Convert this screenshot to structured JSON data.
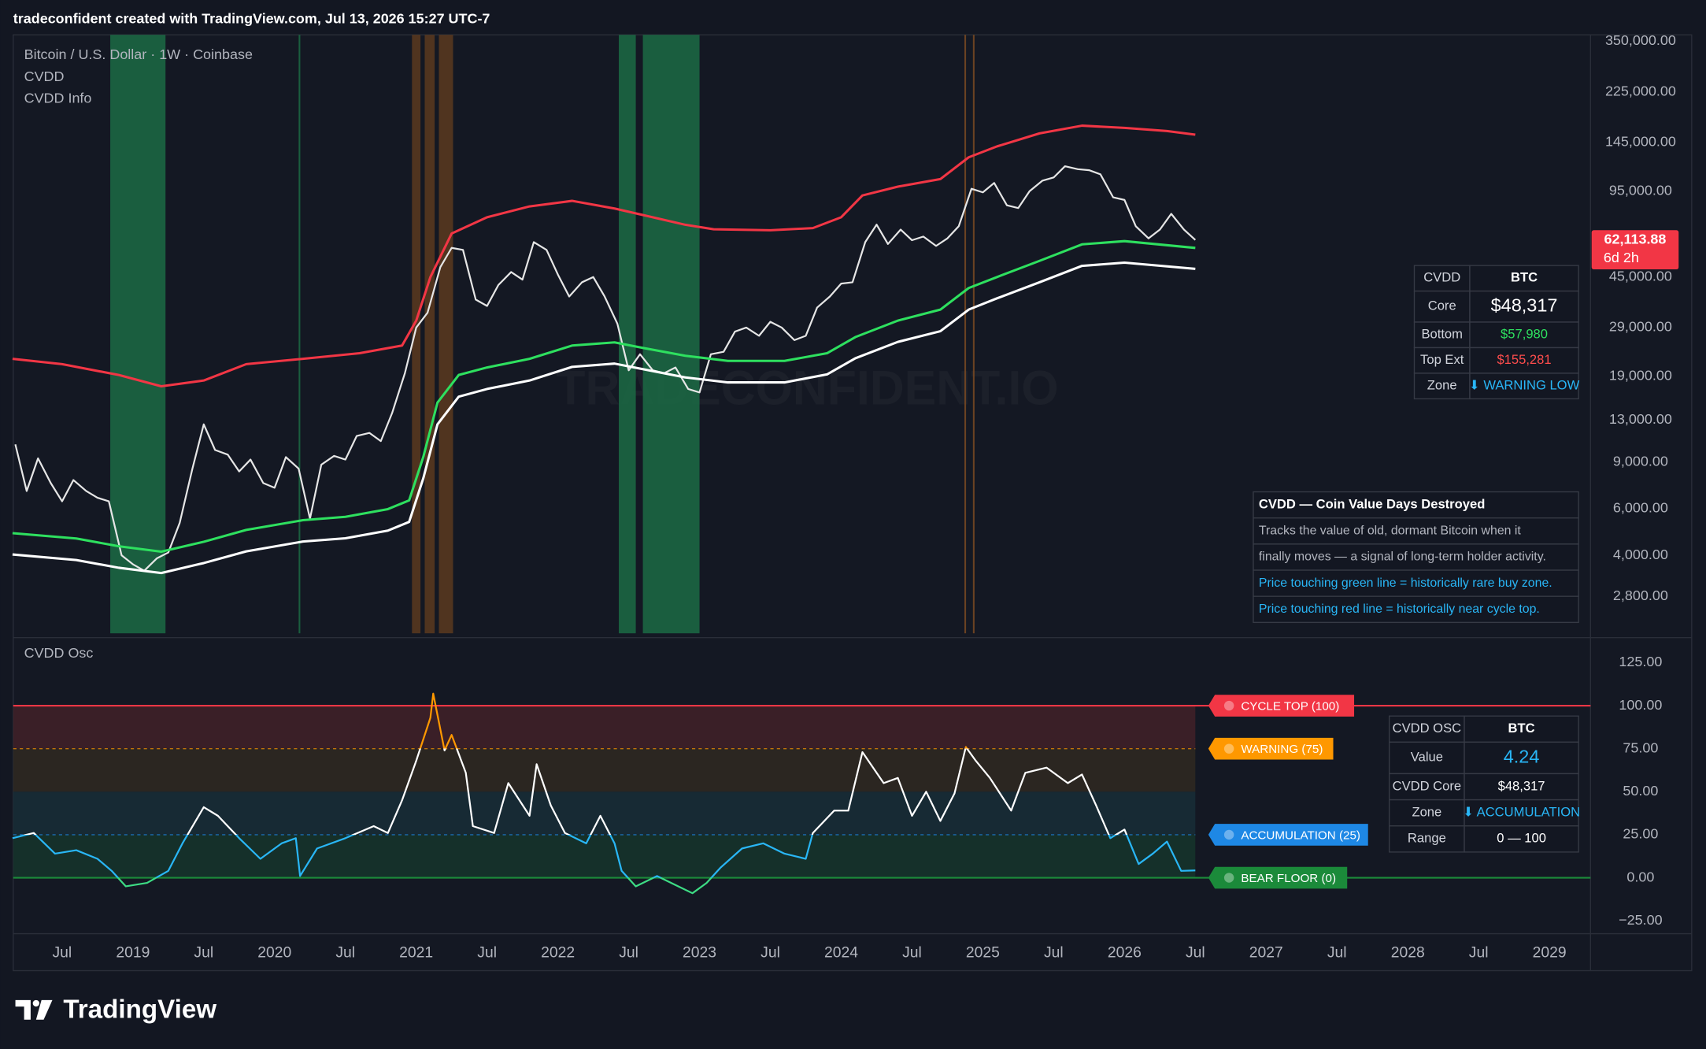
{
  "header": "tradeconfident created with TradingView.com, Jul 13, 2026 15:27 UTC-7",
  "watermark": "TRADECONFIDENT.IO",
  "footer": "TradingView",
  "chart_data": [
    {
      "type": "line",
      "log_scale": true,
      "legend": [
        "Bitcoin / U.S. Dollar · 1W · Coinbase",
        "CVDD",
        "CVDD Info"
      ],
      "xlim": [
        2018.155,
        2029.29
      ],
      "ylim": [
        2030,
        370000
      ],
      "yticks": [
        {
          "value": 350000,
          "label": "350,000.00"
        },
        {
          "value": 225000,
          "label": "225,000.00"
        },
        {
          "value": 145000,
          "label": "145,000.00"
        },
        {
          "value": 95000,
          "label": "95,000.00"
        },
        {
          "value": 45000,
          "label": "45,000.00"
        },
        {
          "value": 29000,
          "label": "29,000.00"
        },
        {
          "value": 19000,
          "label": "19,000.00"
        },
        {
          "value": 13000,
          "label": "13,000.00"
        },
        {
          "value": 9000,
          "label": "9,000.00"
        },
        {
          "value": 6000,
          "label": "6,000.00"
        },
        {
          "value": 4000,
          "label": "4,000.00"
        },
        {
          "value": 2800,
          "label": "2,800.00"
        }
      ],
      "last_price": {
        "value": 62113.88,
        "label": "62,113.88",
        "countdown": "6d 2h",
        "color": "#f23645"
      },
      "zones": [
        {
          "start": 2018.84,
          "end": 2019.23,
          "color": "#1b6b44"
        },
        {
          "start": 2020.17,
          "end": 2020.18,
          "color": "#1b6b44"
        },
        {
          "start": 2022.43,
          "end": 2022.55,
          "color": "#1b6b44"
        },
        {
          "start": 2022.6,
          "end": 2023.0,
          "color": "#1b6b44"
        },
        {
          "start": 2020.97,
          "end": 2021.03,
          "color": "#5a3a1e"
        },
        {
          "start": 2021.06,
          "end": 2021.13,
          "color": "#5a3a1e"
        },
        {
          "start": 2021.16,
          "end": 2021.26,
          "color": "#5a3a1e"
        },
        {
          "start": 2024.87,
          "end": 2024.88,
          "color": "#7a4a22"
        },
        {
          "start": 2024.93,
          "end": 2024.94,
          "color": "#7a4a22"
        }
      ],
      "series": [
        {
          "color": "#e6e6e6",
          "x": [
            2018.17,
            2018.25,
            2018.33,
            2018.42,
            2018.5,
            2018.58,
            2018.67,
            2018.75,
            2018.83,
            2018.92,
            2019.0,
            2019.08,
            2019.17,
            2019.25,
            2019.33,
            2019.42,
            2019.5,
            2019.58,
            2019.67,
            2019.75,
            2019.83,
            2019.92,
            2020.0,
            2020.08,
            2020.17,
            2020.25,
            2020.33,
            2020.42,
            2020.5,
            2020.58,
            2020.67,
            2020.75,
            2020.83,
            2020.92,
            2021.0,
            2021.08,
            2021.17,
            2021.25,
            2021.33,
            2021.42,
            2021.5,
            2021.58,
            2021.67,
            2021.75,
            2021.83,
            2021.92,
            2022.0,
            2022.08,
            2022.17,
            2022.25,
            2022.33,
            2022.42,
            2022.5,
            2022.58,
            2022.67,
            2022.75,
            2022.83,
            2022.92,
            2023.0,
            2023.08,
            2023.17,
            2023.25,
            2023.33,
            2023.42,
            2023.5,
            2023.58,
            2023.67,
            2023.75,
            2023.83,
            2023.92,
            2024.0,
            2024.08,
            2024.17,
            2024.25,
            2024.33,
            2024.42,
            2024.5,
            2024.58,
            2024.67,
            2024.75,
            2024.83,
            2024.92,
            2025.0,
            2025.08,
            2025.17,
            2025.25,
            2025.33,
            2025.42,
            2025.5,
            2025.58,
            2025.67,
            2025.75,
            2025.83,
            2025.92,
            2026.0,
            2026.08,
            2026.17,
            2026.25,
            2026.33,
            2026.42,
            2026.5
          ],
          "values": [
            10500,
            7000,
            9300,
            7500,
            6400,
            7700,
            7000,
            6600,
            6400,
            4000,
            3700,
            3500,
            3900,
            4100,
            5300,
            8500,
            12500,
            10000,
            9600,
            8300,
            9200,
            7500,
            7200,
            9400,
            8500,
            5500,
            8800,
            9500,
            9200,
            11300,
            11600,
            10800,
            13800,
            19500,
            29000,
            33000,
            49000,
            58000,
            57000,
            37000,
            35000,
            42000,
            47000,
            44000,
            61000,
            57000,
            46000,
            38000,
            43000,
            45000,
            38000,
            30000,
            20000,
            23000,
            20000,
            19500,
            20500,
            17000,
            16500,
            23000,
            23500,
            28000,
            29000,
            27000,
            30500,
            29000,
            26000,
            27000,
            34500,
            38000,
            42500,
            43000,
            61000,
            71000,
            60000,
            68000,
            62000,
            64000,
            59000,
            63000,
            70000,
            97000,
            94000,
            102000,
            84000,
            82000,
            95000,
            104000,
            107000,
            118000,
            115000,
            114000,
            110000,
            90000,
            88000,
            70000,
            63000,
            68000,
            78000,
            68000,
            62113.88
          ]
        },
        {
          "name": "Top Ext",
          "color": "#f23645",
          "x": [
            2018.15,
            2018.5,
            2018.9,
            2019.2,
            2019.5,
            2019.8,
            2020.2,
            2020.6,
            2020.9,
            2021.0,
            2021.1,
            2021.25,
            2021.5,
            2021.8,
            2022.1,
            2022.4,
            2022.6,
            2022.9,
            2023.1,
            2023.5,
            2023.8,
            2024.0,
            2024.15,
            2024.4,
            2024.7,
            2024.9,
            2025.1,
            2025.4,
            2025.7,
            2026.0,
            2026.3,
            2026.5
          ],
          "values": [
            22100,
            21100,
            19200,
            17400,
            18300,
            21100,
            22100,
            23200,
            24800,
            30800,
            45000,
            65700,
            75700,
            83200,
            87300,
            81700,
            77200,
            70900,
            68200,
            67600,
            68900,
            75700,
            91500,
            98800,
            105500,
            127500,
            140200,
            157000,
            167900,
            164700,
            160200,
            155281
          ]
        },
        {
          "name": "Bottom",
          "color": "#2ee05f",
          "x": [
            2018.15,
            2018.6,
            2018.9,
            2019.2,
            2019.5,
            2019.8,
            2020.2,
            2020.5,
            2020.8,
            2020.95,
            2021.05,
            2021.15,
            2021.3,
            2021.5,
            2021.8,
            2022.1,
            2022.4,
            2022.6,
            2022.9,
            2023.2,
            2023.6,
            2023.9,
            2024.1,
            2024.4,
            2024.7,
            2024.9,
            2025.1,
            2025.4,
            2025.7,
            2026.0,
            2026.5
          ],
          "values": [
            4850,
            4630,
            4330,
            4130,
            4500,
            4990,
            5430,
            5590,
            5980,
            6450,
            9420,
            15100,
            19200,
            20500,
            22100,
            24800,
            25500,
            24300,
            22700,
            21700,
            21700,
            23200,
            26700,
            30800,
            33900,
            40900,
            45000,
            51800,
            59800,
            61500,
            57980
          ]
        },
        {
          "name": "Core",
          "color": "#ffffff",
          "x": [
            2018.15,
            2018.6,
            2018.9,
            2019.2,
            2019.5,
            2019.8,
            2020.2,
            2020.5,
            2020.8,
            2020.95,
            2021.05,
            2021.15,
            2021.3,
            2021.5,
            2021.8,
            2022.1,
            2022.4,
            2022.6,
            2022.9,
            2023.2,
            2023.6,
            2023.9,
            2024.1,
            2024.4,
            2024.7,
            2024.9,
            2025.1,
            2025.4,
            2025.7,
            2026.0,
            2026.5
          ],
          "values": [
            4030,
            3840,
            3590,
            3430,
            3740,
            4140,
            4510,
            4640,
            4960,
            5350,
            7820,
            12500,
            15900,
            17000,
            18300,
            20600,
            21200,
            20200,
            18800,
            18000,
            18000,
            19300,
            22200,
            25600,
            28100,
            33900,
            37400,
            43000,
            49600,
            51000,
            48317
          ]
        }
      ]
    },
    {
      "type": "line",
      "title": "CVDD Osc",
      "xlim": [
        2018.155,
        2029.29
      ],
      "xticks": [
        {
          "value": 2018.5,
          "label": "Jul"
        },
        2019,
        {
          "value": 2019.5,
          "label": "Jul"
        },
        2020,
        {
          "value": 2020.5,
          "label": "Jul"
        },
        2021,
        {
          "value": 2021.5,
          "label": "Jul"
        },
        2022,
        {
          "value": 2022.5,
          "label": "Jul"
        },
        2023,
        {
          "value": 2023.5,
          "label": "Jul"
        },
        2024,
        {
          "value": 2024.5,
          "label": "Jul"
        },
        2025,
        {
          "value": 2025.5,
          "label": "Jul"
        },
        2026,
        {
          "value": 2026.5,
          "label": "Jul"
        },
        2027,
        {
          "value": 2027.5,
          "label": "Jul"
        },
        2028,
        {
          "value": 2028.5,
          "label": "Jul"
        },
        2029
      ],
      "ylim": [
        -32.5,
        137
      ],
      "yticks": [
        {
          "value": 125,
          "label": "125.00"
        },
        {
          "value": 100,
          "label": "100.00"
        },
        {
          "value": 75,
          "label": "75.00"
        },
        {
          "value": 50,
          "label": "50.00"
        },
        {
          "value": 25,
          "label": "25.00"
        },
        {
          "value": 0,
          "label": "0.00"
        },
        {
          "value": -25,
          "label": "−25.00"
        }
      ],
      "bands": [
        {
          "from": 75,
          "to": 100,
          "color": "#3a1f27"
        },
        {
          "from": 50,
          "to": 75,
          "color": "#2b2621"
        },
        {
          "from": 25,
          "to": 50,
          "color": "#172a34"
        },
        {
          "from": 0,
          "to": 25,
          "color": "#15302a"
        }
      ],
      "levels": [
        {
          "value": 100,
          "label": "CYCLE TOP (100)",
          "color": "#f23645",
          "dashed": false
        },
        {
          "value": 75,
          "label": "WARNING (75)",
          "color": "#ff9800",
          "dashed": true
        },
        {
          "value": 25,
          "label": "ACCUMULATION (25)",
          "color": "#1e88e5",
          "dashed": true
        },
        {
          "value": 0,
          "label": "BEAR FLOOR (0)",
          "color": "#1b8a3a",
          "dashed": false
        }
      ],
      "series": [
        {
          "color": "#3ddc84",
          "zone_colors": [
            {
              "min": 75,
              "color": "#ff9800"
            },
            {
              "min": 25,
              "color": "#ffffff"
            },
            {
              "min": 0,
              "color": "#29b6f6"
            }
          ],
          "x": [
            2018.15,
            2018.3,
            2018.45,
            2018.6,
            2018.75,
            2018.85,
            2018.95,
            2019.1,
            2019.25,
            2019.35,
            2019.5,
            2019.6,
            2019.75,
            2019.9,
            2020.05,
            2020.15,
            2020.18,
            2020.3,
            2020.5,
            2020.7,
            2020.8,
            2020.9,
            2021.0,
            2021.1,
            2021.12,
            2021.2,
            2021.25,
            2021.35,
            2021.4,
            2021.55,
            2021.65,
            2021.8,
            2021.85,
            2021.95,
            2022.05,
            2022.2,
            2022.3,
            2022.4,
            2022.45,
            2022.55,
            2022.7,
            2022.85,
            2022.95,
            2023.05,
            2023.15,
            2023.3,
            2023.45,
            2023.6,
            2023.75,
            2023.8,
            2023.95,
            2024.05,
            2024.15,
            2024.3,
            2024.4,
            2024.5,
            2024.6,
            2024.7,
            2024.8,
            2024.88,
            2024.95,
            2025.05,
            2025.2,
            2025.3,
            2025.45,
            2025.6,
            2025.7,
            2025.8,
            2025.9,
            2026.0,
            2026.1,
            2026.2,
            2026.3,
            2026.4,
            2026.5
          ],
          "values": [
            23,
            26,
            14,
            16,
            11,
            4,
            -5,
            -3,
            4,
            20,
            41,
            36,
            23,
            11,
            20,
            23,
            1,
            17,
            23,
            30,
            26,
            45,
            68,
            93,
            107,
            74,
            83,
            61,
            30,
            26,
            55,
            36,
            66,
            42,
            26,
            20,
            36,
            20,
            4,
            -5,
            1,
            -5,
            -9,
            -3,
            6,
            17,
            20,
            14,
            11,
            26,
            39,
            39,
            73,
            55,
            58,
            36,
            50,
            33,
            49,
            76,
            68,
            58,
            39,
            61,
            64,
            55,
            60,
            42,
            23,
            28,
            8,
            14,
            21,
            4,
            4.24
          ]
        }
      ]
    }
  ],
  "cvdd_table": {
    "header": [
      "CVDD",
      "BTC"
    ],
    "rows": [
      {
        "label": "Core",
        "value": "$48,317",
        "color": "#ffffff"
      },
      {
        "label": "Bottom",
        "value": "$57,980",
        "color": "#2ee05f"
      },
      {
        "label": "Top Ext",
        "value": "$155,281",
        "color": "#ff4d4d"
      },
      {
        "label": "Zone",
        "value": "⬇ WARNING LOW",
        "color": "#29b6f6"
      }
    ]
  },
  "info_table": {
    "title": "CVDD — Coin Value Days Destroyed",
    "lines": [
      {
        "text": "Tracks the value of old, dormant Bitcoin when it",
        "color": "#b2b5be"
      },
      {
        "text": "finally moves — a signal of long-term holder activity.",
        "color": "#b2b5be"
      },
      {
        "text": "Price touching green line = historically rare buy zone.",
        "color": "#29b6f6"
      },
      {
        "text": "Price touching red line = historically near cycle top.",
        "color": "#29b6f6"
      }
    ]
  },
  "osc_table": {
    "header": [
      "CVDD OSC",
      "BTC"
    ],
    "rows": [
      {
        "label": "Value",
        "value": "4.24",
        "color": "#29b6f6"
      },
      {
        "label": "CVDD Core",
        "value": "$48,317",
        "color": "#ffffff"
      },
      {
        "label": "Zone",
        "value": "⬇ ACCUMULATION",
        "color": "#29b6f6"
      },
      {
        "label": "Range",
        "value": "0 — 100",
        "color": "#ffffff"
      }
    ]
  }
}
